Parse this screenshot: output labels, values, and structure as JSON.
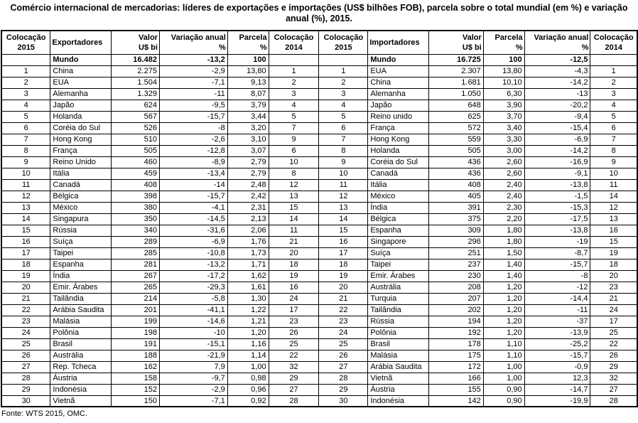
{
  "title": "Comércio internacional de mercadorias: líderes de exportações e importações (US$ bilhões FOB), parcela sobre o total mundial (em %) e variação anual (%), 2015.",
  "source": "Fonte: WTS 2015, OMC.",
  "table": {
    "headers_left": [
      [
        "Colocação",
        "2015"
      ],
      [
        "Exportadores"
      ],
      [
        "Valor",
        "U$ bi"
      ],
      [
        "Variação anual",
        "%"
      ],
      [
        "Parcela",
        "%"
      ],
      [
        "Colocação",
        "2014"
      ]
    ],
    "headers_right": [
      [
        "Colocação",
        "2015"
      ],
      [
        "Importadores"
      ],
      [
        "Valor",
        "U$ bi"
      ],
      [
        "Parcela",
        "%"
      ],
      [
        "Variação anual",
        "%"
      ],
      [
        "Colocação",
        "2014"
      ]
    ],
    "world_exporter": {
      "rank2015": "",
      "name": "Mundo",
      "value": "16.482",
      "variation": "-13,2",
      "share": "100",
      "rank2014": ""
    },
    "world_importer": {
      "rank2015": "",
      "name": "Mundo",
      "value": "16.725",
      "share": "100",
      "variation": "-12,5",
      "rank2014": ""
    },
    "exporters": [
      {
        "rank2015": "1",
        "name": "China",
        "value": "2.275",
        "variation": "-2,9",
        "share": "13,80",
        "rank2014": "1"
      },
      {
        "rank2015": "2",
        "name": "EUA",
        "value": "1.504",
        "variation": "-7,1",
        "share": "9,13",
        "rank2014": "2"
      },
      {
        "rank2015": "3",
        "name": "Alemanha",
        "value": "1.329",
        "variation": "-11",
        "share": "8,07",
        "rank2014": "3"
      },
      {
        "rank2015": "4",
        "name": "Japão",
        "value": "624",
        "variation": "-9,5",
        "share": "3,79",
        "rank2014": "4"
      },
      {
        "rank2015": "5",
        "name": "Holanda",
        "value": "567",
        "variation": "-15,7",
        "share": "3,44",
        "rank2014": "5"
      },
      {
        "rank2015": "6",
        "name": "Coréia do Sul",
        "value": "526",
        "variation": "-8",
        "share": "3,20",
        "rank2014": "7"
      },
      {
        "rank2015": "7",
        "name": "Hong Kong",
        "value": "510",
        "variation": "-2,6",
        "share": "3,10",
        "rank2014": "9"
      },
      {
        "rank2015": "8",
        "name": "França",
        "value": "505",
        "variation": "-12,8",
        "share": "3,07",
        "rank2014": "6"
      },
      {
        "rank2015": "9",
        "name": "Reino Unido",
        "value": "460",
        "variation": "-8,9",
        "share": "2,79",
        "rank2014": "10"
      },
      {
        "rank2015": "10",
        "name": "Itália",
        "value": "459",
        "variation": "-13,4",
        "share": "2,79",
        "rank2014": "8"
      },
      {
        "rank2015": "11",
        "name": "Canadá",
        "value": "408",
        "variation": "-14",
        "share": "2,48",
        "rank2014": "12"
      },
      {
        "rank2015": "12",
        "name": "Bélgica",
        "value": "398",
        "variation": "-15,7",
        "share": "2,42",
        "rank2014": "13"
      },
      {
        "rank2015": "13",
        "name": "México",
        "value": "380",
        "variation": "-4,1",
        "share": "2,31",
        "rank2014": "15"
      },
      {
        "rank2015": "14",
        "name": "Singapura",
        "value": "350",
        "variation": "-14,5",
        "share": "2,13",
        "rank2014": "14"
      },
      {
        "rank2015": "15",
        "name": "Rússia",
        "value": "340",
        "variation": "-31,6",
        "share": "2,06",
        "rank2014": "11"
      },
      {
        "rank2015": "16",
        "name": "Suíça",
        "value": "289",
        "variation": "-6,9",
        "share": "1,76",
        "rank2014": "21"
      },
      {
        "rank2015": "17",
        "name": "Taipei",
        "value": "285",
        "variation": "-10,8",
        "share": "1,73",
        "rank2014": "20"
      },
      {
        "rank2015": "18",
        "name": "Espanha",
        "value": "281",
        "variation": "-13,2",
        "share": "1,71",
        "rank2014": "18"
      },
      {
        "rank2015": "19",
        "name": "Índia",
        "value": "267",
        "variation": "-17,2",
        "share": "1,62",
        "rank2014": "19"
      },
      {
        "rank2015": "20",
        "name": "Emir. Árabes",
        "value": "265",
        "variation": "-29,3",
        "share": "1,61",
        "rank2014": "16"
      },
      {
        "rank2015": "21",
        "name": "Tailândia",
        "value": "214",
        "variation": "-5,8",
        "share": "1,30",
        "rank2014": "24"
      },
      {
        "rank2015": "22",
        "name": "Arábia Saudita",
        "value": "201",
        "variation": "-41,1",
        "share": "1,22",
        "rank2014": "17"
      },
      {
        "rank2015": "23",
        "name": "Malásia",
        "value": "199",
        "variation": "-14,6",
        "share": "1,21",
        "rank2014": "23"
      },
      {
        "rank2015": "24",
        "name": "Polônia",
        "value": "198",
        "variation": "-10",
        "share": "1,20",
        "rank2014": "26"
      },
      {
        "rank2015": "25",
        "name": "Brasil",
        "value": "191",
        "variation": "-15,1",
        "share": "1,16",
        "rank2014": "25"
      },
      {
        "rank2015": "26",
        "name": "Austrália",
        "value": "188",
        "variation": "-21,9",
        "share": "1,14",
        "rank2014": "22"
      },
      {
        "rank2015": "27",
        "name": "Rep. Tcheca",
        "value": "162",
        "variation": "7,9",
        "share": "1,00",
        "rank2014": "32"
      },
      {
        "rank2015": "28",
        "name": "Áustria",
        "value": "158",
        "variation": "-9,7",
        "share": "0,98",
        "rank2014": "29"
      },
      {
        "rank2015": "29",
        "name": "Indonésia",
        "value": "152",
        "variation": "-2,9",
        "share": "0,96",
        "rank2014": "27"
      },
      {
        "rank2015": "30",
        "name": "Vietnã",
        "value": "150",
        "variation": "-7,1",
        "share": "0,92",
        "rank2014": "28"
      }
    ],
    "importers": [
      {
        "rank2015": "1",
        "name": "EUA",
        "value": "2.307",
        "share": "13,80",
        "variation": "-4,3",
        "rank2014": "1"
      },
      {
        "rank2015": "2",
        "name": "China",
        "value": "1.681",
        "share": "10,10",
        "variation": "-14,2",
        "rank2014": "2"
      },
      {
        "rank2015": "3",
        "name": "Alemanha",
        "value": "1.050",
        "share": "6,30",
        "variation": "-13",
        "rank2014": "3"
      },
      {
        "rank2015": "4",
        "name": "Japão",
        "value": "648",
        "share": "3,90",
        "variation": "-20,2",
        "rank2014": "4"
      },
      {
        "rank2015": "5",
        "name": "Reino unido",
        "value": "625",
        "share": "3,70",
        "variation": "-9,4",
        "rank2014": "5"
      },
      {
        "rank2015": "6",
        "name": "França",
        "value": "572",
        "share": "3,40",
        "variation": "-15,4",
        "rank2014": "6"
      },
      {
        "rank2015": "7",
        "name": "Hong Kong",
        "value": "559",
        "share": "3,30",
        "variation": "-6,9",
        "rank2014": "7"
      },
      {
        "rank2015": "8",
        "name": "Holanda",
        "value": "505",
        "share": "3,00",
        "variation": "-14,2",
        "rank2014": "8"
      },
      {
        "rank2015": "9",
        "name": "Coréia do Sul",
        "value": "436",
        "share": "2,60",
        "variation": "-16,9",
        "rank2014": "9"
      },
      {
        "rank2015": "10",
        "name": "Canadá",
        "value": "436",
        "share": "2,60",
        "variation": "-9,1",
        "rank2014": "10"
      },
      {
        "rank2015": "11",
        "name": "Itália",
        "value": "408",
        "share": "2,40",
        "variation": "-13,8",
        "rank2014": "11"
      },
      {
        "rank2015": "12",
        "name": "México",
        "value": "405",
        "share": "2,40",
        "variation": "-1,5",
        "rank2014": "14"
      },
      {
        "rank2015": "13",
        "name": "Índia",
        "value": "391",
        "share": "2,30",
        "variation": "-15,3",
        "rank2014": "12"
      },
      {
        "rank2015": "14",
        "name": "Bélgica",
        "value": "375",
        "share": "2,20",
        "variation": "-17,5",
        "rank2014": "13"
      },
      {
        "rank2015": "15",
        "name": "Espanha",
        "value": "309",
        "share": "1,80",
        "variation": "-13,8",
        "rank2014": "16"
      },
      {
        "rank2015": "16",
        "name": "Singapore",
        "value": "296",
        "share": "1,80",
        "variation": "-19",
        "rank2014": "15"
      },
      {
        "rank2015": "17",
        "name": "Suíça",
        "value": "251",
        "share": "1,50",
        "variation": "-8,7",
        "rank2014": "19"
      },
      {
        "rank2015": "18",
        "name": "Taipei",
        "value": "237",
        "share": "1,40",
        "variation": "-15,7",
        "rank2014": "18"
      },
      {
        "rank2015": "19",
        "name": "Emir. Árabes",
        "value": "230",
        "share": "1,40",
        "variation": "-8",
        "rank2014": "20"
      },
      {
        "rank2015": "20",
        "name": "Austrália",
        "value": "208",
        "share": "1,20",
        "variation": "-12",
        "rank2014": "23"
      },
      {
        "rank2015": "21",
        "name": "Turquia",
        "value": "207",
        "share": "1,20",
        "variation": "-14,4",
        "rank2014": "21"
      },
      {
        "rank2015": "22",
        "name": "Tailândia",
        "value": "202",
        "share": "1,20",
        "variation": "-11",
        "rank2014": "24"
      },
      {
        "rank2015": "23",
        "name": "Rússia",
        "value": "194",
        "share": "1,20",
        "variation": "-37",
        "rank2014": "17"
      },
      {
        "rank2015": "24",
        "name": "Polônia",
        "value": "192",
        "share": "1,20",
        "variation": "-13,9",
        "rank2014": "25"
      },
      {
        "rank2015": "25",
        "name": "Brasil",
        "value": "178",
        "share": "1,10",
        "variation": "-25,2",
        "rank2014": "22"
      },
      {
        "rank2015": "26",
        "name": "Malásia",
        "value": "175",
        "share": "1,10",
        "variation": "-15,7",
        "rank2014": "26"
      },
      {
        "rank2015": "27",
        "name": "Arábia Saudita",
        "value": "172",
        "share": "1,00",
        "variation": "-0,9",
        "rank2014": "29"
      },
      {
        "rank2015": "28",
        "name": "Vietnã",
        "value": "166",
        "share": "1,00",
        "variation": "12,3",
        "rank2014": "32"
      },
      {
        "rank2015": "29",
        "name": "Áustria",
        "value": "155",
        "share": "0,90",
        "variation": "-14,7",
        "rank2014": "27"
      },
      {
        "rank2015": "30",
        "name": "Indonésia",
        "value": "142",
        "share": "0,90",
        "variation": "-19,9",
        "rank2014": "28"
      }
    ]
  }
}
